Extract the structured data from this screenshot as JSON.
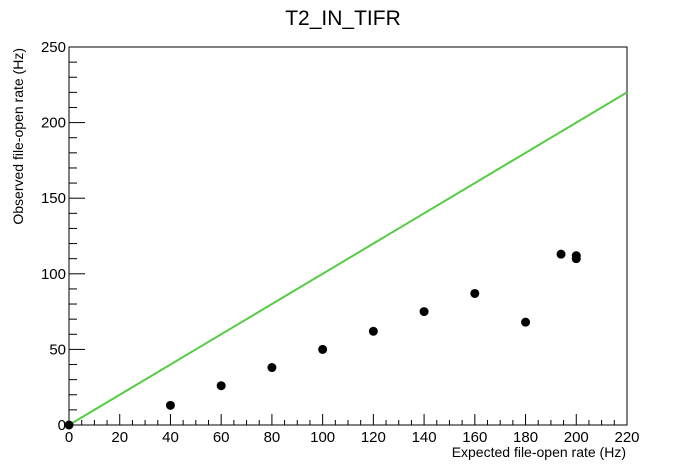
{
  "chart_data": {
    "type": "scatter",
    "title": "T2_IN_TIFR",
    "xlabel": "Expected file-open rate (Hz)",
    "ylabel": "Observed file-open rate (Hz)",
    "xlim": [
      0,
      220
    ],
    "ylim": [
      0,
      250
    ],
    "x_ticks": [
      0,
      20,
      40,
      60,
      80,
      100,
      120,
      140,
      160,
      180,
      200,
      220
    ],
    "y_ticks": [
      0,
      50,
      100,
      150,
      200,
      250
    ],
    "grid": false,
    "points": [
      {
        "x": 0,
        "y": 0
      },
      {
        "x": 40,
        "y": 13
      },
      {
        "x": 60,
        "y": 26
      },
      {
        "x": 80,
        "y": 38
      },
      {
        "x": 100,
        "y": 50
      },
      {
        "x": 120,
        "y": 62
      },
      {
        "x": 140,
        "y": 75
      },
      {
        "x": 160,
        "y": 87
      },
      {
        "x": 180,
        "y": 68
      },
      {
        "x": 194,
        "y": 113
      },
      {
        "x": 200,
        "y": 110
      },
      {
        "x": 200,
        "y": 112
      }
    ],
    "reference_line": {
      "from": [
        0,
        0
      ],
      "to": [
        220,
        220
      ]
    },
    "colors": {
      "points": "#000000",
      "reference_line": "#55cc44",
      "axes": "#000000"
    }
  }
}
